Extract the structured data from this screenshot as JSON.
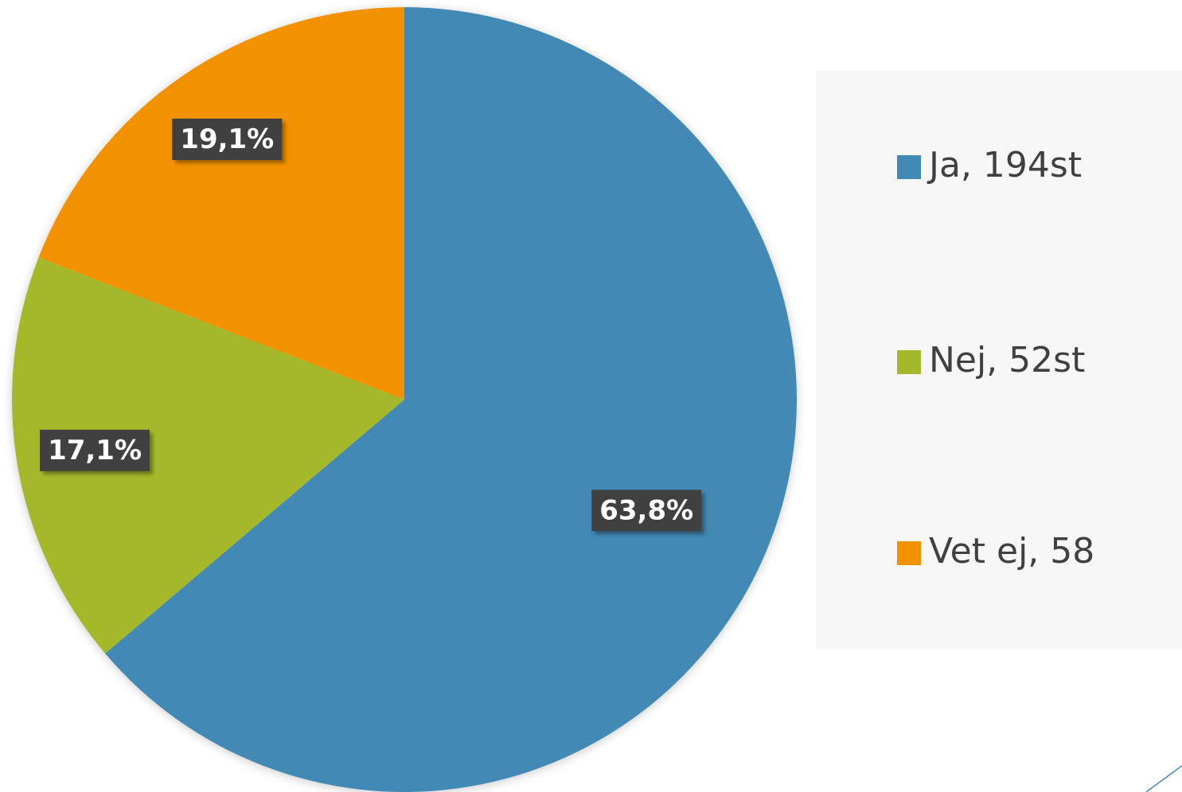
{
  "chart_data": {
    "type": "pie",
    "categories": [
      "Ja, 194st",
      "Nej, 52st",
      "Vet ej, 58"
    ],
    "values": [
      63.8,
      17.1,
      19.1
    ],
    "value_labels": [
      "63,8%",
      "17,1%",
      "19,1%"
    ],
    "colors": [
      "#4389b5",
      "#a5b82b",
      "#f39200"
    ],
    "legend": "right"
  }
}
